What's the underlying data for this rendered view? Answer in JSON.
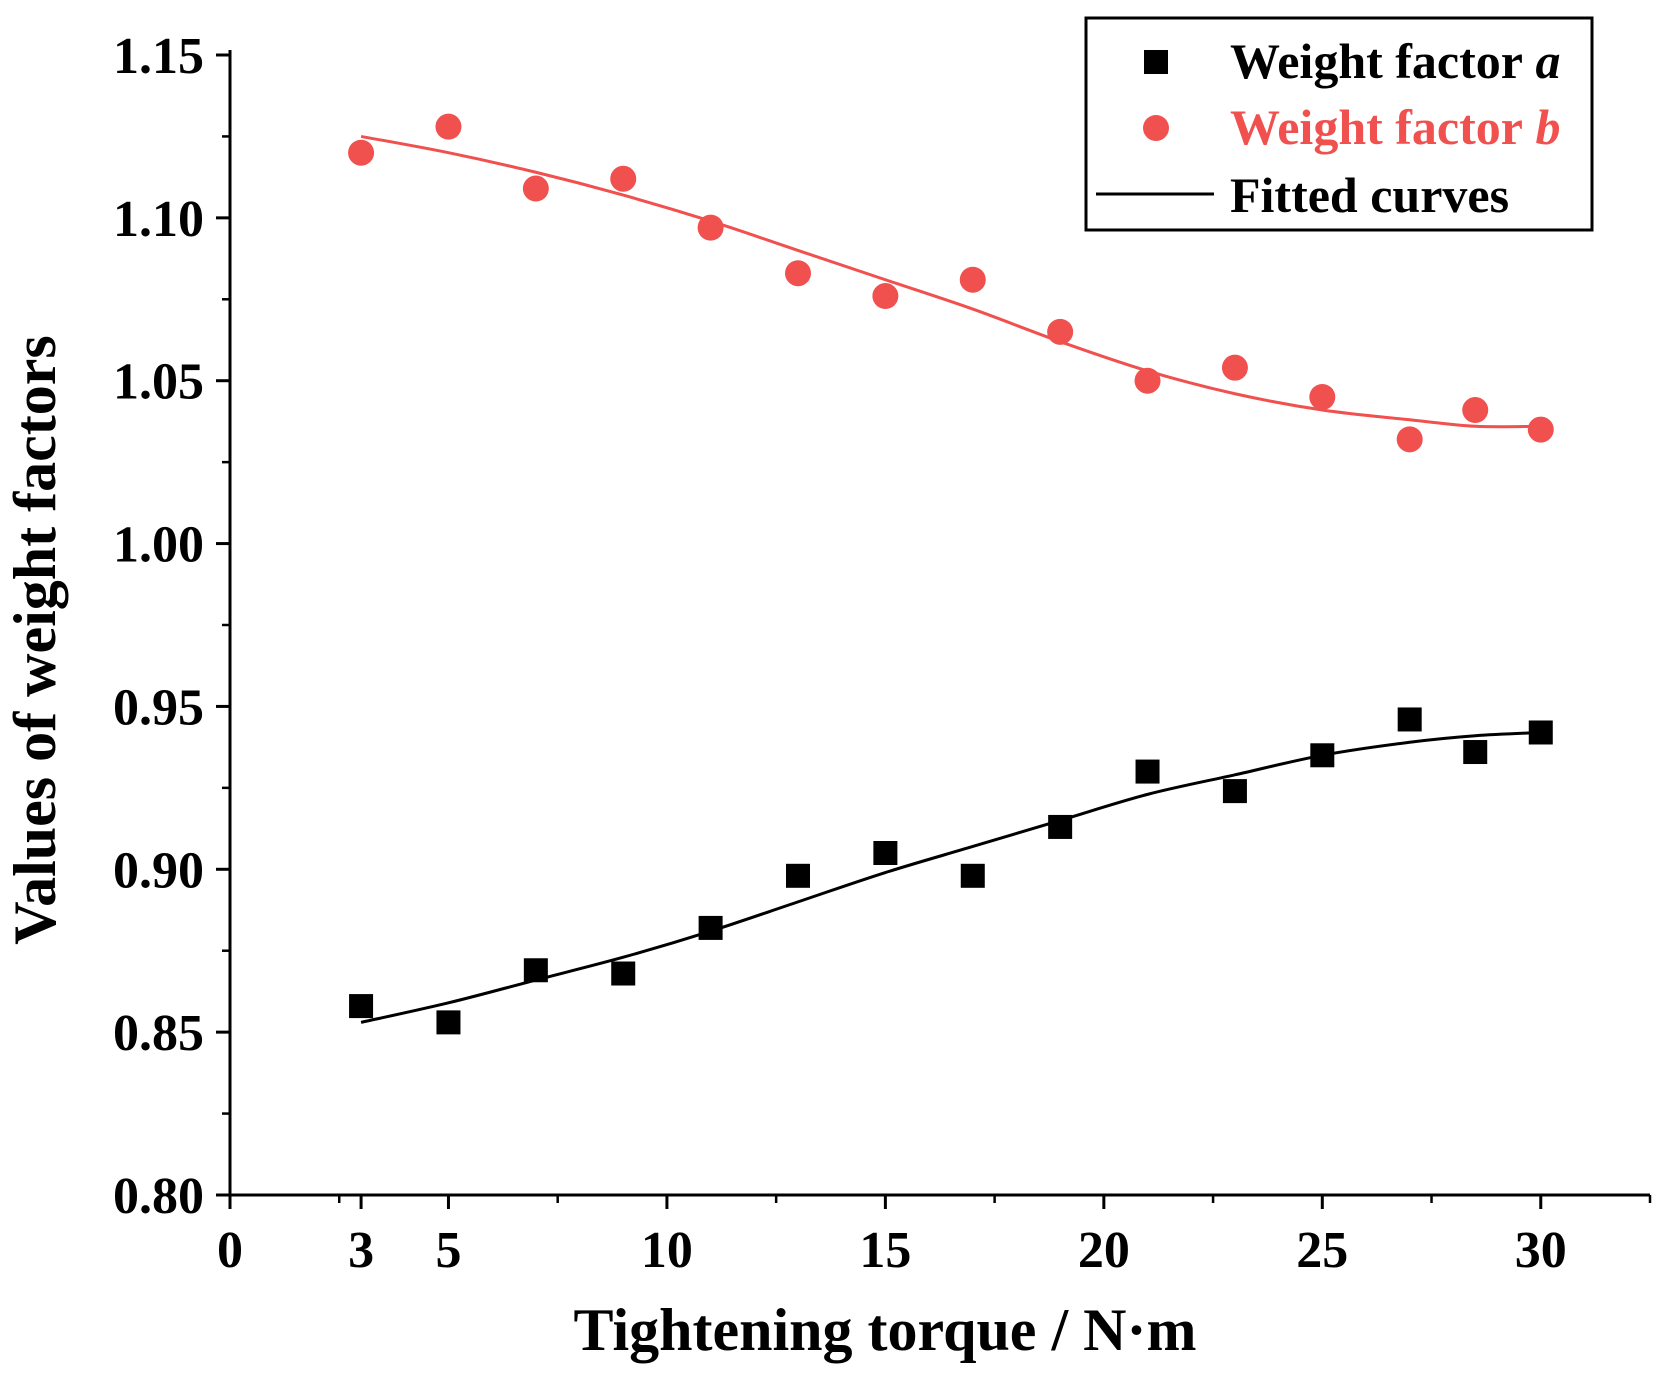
{
  "chart_data": {
    "type": "scatter",
    "title": "",
    "xlabel": "Tightening torque / N·m",
    "ylabel": "Values of weight factors",
    "xlim": [
      0,
      32.5
    ],
    "ylim": [
      0.8,
      1.15
    ],
    "x_ticks": [
      {
        "value": 0,
        "label": "0"
      },
      {
        "value": 3,
        "label": "3"
      },
      {
        "value": 5,
        "label": "5"
      },
      {
        "value": 10,
        "label": "10"
      },
      {
        "value": 15,
        "label": "15"
      },
      {
        "value": 20,
        "label": "20"
      },
      {
        "value": 25,
        "label": "25"
      },
      {
        "value": 30,
        "label": "30"
      }
    ],
    "x_minor_ticks": [
      2.5,
      7.5,
      12.5,
      17.5,
      22.5,
      27.5,
      32.5
    ],
    "y_ticks": [
      {
        "value": 0.8,
        "label": "0.80"
      },
      {
        "value": 0.85,
        "label": "0.85"
      },
      {
        "value": 0.9,
        "label": "0.90"
      },
      {
        "value": 0.95,
        "label": "0.95"
      },
      {
        "value": 1.0,
        "label": "1.00"
      },
      {
        "value": 1.05,
        "label": "1.05"
      },
      {
        "value": 1.1,
        "label": "1.10"
      },
      {
        "value": 1.15,
        "label": "1.15"
      }
    ],
    "y_minor_ticks": [
      0.825,
      0.875,
      0.925,
      0.975,
      1.025,
      1.075,
      1.125
    ],
    "grid": false,
    "legend_position": "top-right",
    "series": [
      {
        "name": "Weight factor",
        "italic_suffix": "a",
        "marker": "square",
        "color": "#000000",
        "x": [
          3,
          5,
          7,
          9,
          11,
          13,
          15,
          17,
          19,
          21,
          23,
          25,
          27,
          28.5,
          30
        ],
        "values": [
          0.858,
          0.853,
          0.869,
          0.868,
          0.882,
          0.898,
          0.905,
          0.898,
          0.913,
          0.93,
          0.924,
          0.935,
          0.946,
          0.936,
          0.942
        ],
        "fit": {
          "x": [
            3,
            5,
            7,
            9,
            11,
            13,
            15,
            17,
            19,
            21,
            23,
            25,
            27,
            28.5,
            30
          ],
          "values": [
            0.853,
            0.859,
            0.866,
            0.873,
            0.881,
            0.89,
            0.899,
            0.907,
            0.915,
            0.923,
            0.929,
            0.935,
            0.939,
            0.941,
            0.942
          ]
        }
      },
      {
        "name": "Weight factor",
        "italic_suffix": "b",
        "marker": "circle",
        "color": "#f0504e",
        "x": [
          3,
          5,
          7,
          9,
          11,
          13,
          15,
          17,
          19,
          21,
          23,
          25,
          27,
          28.5,
          30
        ],
        "values": [
          1.12,
          1.128,
          1.109,
          1.112,
          1.097,
          1.083,
          1.076,
          1.081,
          1.065,
          1.05,
          1.054,
          1.045,
          1.032,
          1.041,
          1.035
        ],
        "fit": {
          "x": [
            3,
            5,
            7,
            9,
            11,
            13,
            15,
            17,
            19,
            21,
            23,
            25,
            27,
            28.5,
            30
          ],
          "values": [
            1.125,
            1.12,
            1.114,
            1.107,
            1.099,
            1.09,
            1.081,
            1.072,
            1.062,
            1.053,
            1.046,
            1.041,
            1.038,
            1.036,
            1.036
          ]
        }
      }
    ],
    "legend": [
      {
        "label": "Weight factor",
        "italic": "a",
        "marker": "square",
        "color": "#000000"
      },
      {
        "label": "Weight factor",
        "italic": "b",
        "marker": "circle",
        "color": "#f0504e"
      },
      {
        "label": "Fitted curves",
        "italic": "",
        "marker": "line",
        "color": "#000000"
      }
    ]
  }
}
